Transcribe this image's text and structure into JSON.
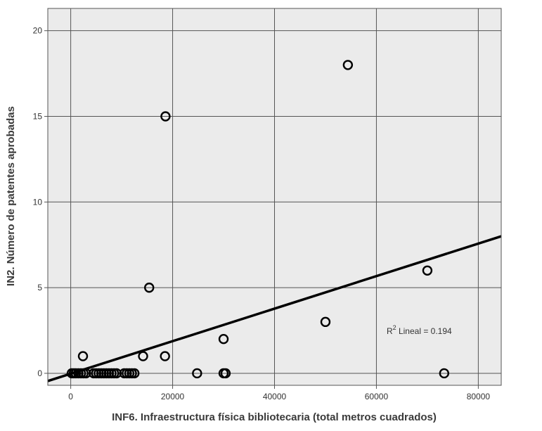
{
  "chart_data": {
    "type": "scatter",
    "title": "",
    "xlabel": "INF6. Infraestructura física bibliotecaria (total metros cuadrados)",
    "ylabel": "IN2. Número de patentes aprobadas",
    "xlim": [
      -4500,
      84500
    ],
    "ylim": [
      -0.7,
      21.3
    ],
    "x_ticks": [
      0,
      20000,
      40000,
      60000,
      80000
    ],
    "y_ticks": [
      0,
      5,
      10,
      15,
      20
    ],
    "x_tick_labels": [
      "0",
      "20000",
      "40000",
      "60000",
      "80000"
    ],
    "y_tick_labels": [
      "0",
      "5",
      "10",
      "15",
      "20"
    ],
    "grid": true,
    "points": [
      {
        "x": 200,
        "y": 0
      },
      {
        "x": 600,
        "y": 0
      },
      {
        "x": 1000,
        "y": 0
      },
      {
        "x": 1500,
        "y": 0
      },
      {
        "x": 2000,
        "y": 0
      },
      {
        "x": 2500,
        "y": 0
      },
      {
        "x": 3000,
        "y": 0
      },
      {
        "x": 4500,
        "y": 0
      },
      {
        "x": 5000,
        "y": 0
      },
      {
        "x": 5500,
        "y": 0
      },
      {
        "x": 6000,
        "y": 0
      },
      {
        "x": 6500,
        "y": 0
      },
      {
        "x": 7000,
        "y": 0
      },
      {
        "x": 7500,
        "y": 0
      },
      {
        "x": 8000,
        "y": 0
      },
      {
        "x": 8500,
        "y": 0
      },
      {
        "x": 9000,
        "y": 0
      },
      {
        "x": 10500,
        "y": 0
      },
      {
        "x": 11000,
        "y": 0
      },
      {
        "x": 11500,
        "y": 0
      },
      {
        "x": 12000,
        "y": 0
      },
      {
        "x": 12500,
        "y": 0
      },
      {
        "x": 2400,
        "y": 1
      },
      {
        "x": 14200,
        "y": 1
      },
      {
        "x": 15400,
        "y": 5
      },
      {
        "x": 18500,
        "y": 1
      },
      {
        "x": 18600,
        "y": 15
      },
      {
        "x": 24800,
        "y": 0
      },
      {
        "x": 30000,
        "y": 0
      },
      {
        "x": 30400,
        "y": 0
      },
      {
        "x": 30000,
        "y": 2
      },
      {
        "x": 50000,
        "y": 3
      },
      {
        "x": 54400,
        "y": 18
      },
      {
        "x": 70000,
        "y": 6
      },
      {
        "x": 73300,
        "y": 0
      }
    ],
    "fit_line": {
      "x": [
        -4500,
        84500
      ],
      "y": [
        -0.45,
        8.0
      ]
    },
    "annotation": {
      "superscript": "2",
      "base": "R",
      "text": " Lineal = 0.194",
      "x": 62000,
      "y": 2.3
    }
  }
}
